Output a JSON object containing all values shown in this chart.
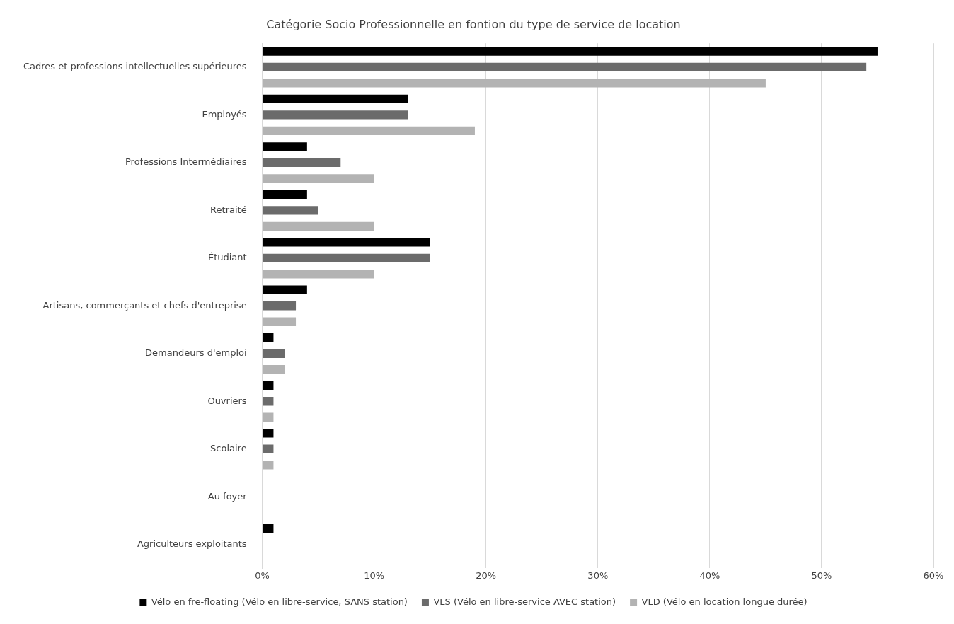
{
  "chart_data": {
    "type": "bar",
    "orientation": "horizontal",
    "title": "Catégorie Socio Professionnelle en fontion du type de service de location",
    "categories": [
      "Cadres et professions intellectuelles supérieures",
      "Employés",
      "Professions Intermédiaires",
      "Retraité",
      "Étudiant",
      "Artisans, commerçants et chefs d'entreprise",
      "Demandeurs d'emploi",
      "Ouvriers",
      "Scolaire",
      "Au foyer",
      "Agriculteurs exploitants"
    ],
    "series": [
      {
        "name": "Vélo en fre-floating (Vélo en libre-service, SANS station)",
        "color": "#000000",
        "values": [
          55,
          13,
          4,
          4,
          15,
          4,
          1,
          1,
          1,
          0,
          1
        ]
      },
      {
        "name": "VLS (Vélo en libre-service AVEC station)",
        "color": "#6b6b6b",
        "values": [
          54,
          13,
          7,
          5,
          15,
          3,
          2,
          1,
          1,
          0,
          0
        ]
      },
      {
        "name": "VLD (Vélo en location longue durée)",
        "color": "#b3b3b3",
        "values": [
          45,
          19,
          10,
          10,
          10,
          3,
          2,
          1,
          1,
          0,
          0
        ]
      }
    ],
    "xlim": [
      0,
      60
    ],
    "xticks": [
      {
        "value": 0,
        "label": "0%"
      },
      {
        "value": 10,
        "label": "10%"
      },
      {
        "value": 20,
        "label": "20%"
      },
      {
        "value": 30,
        "label": "30%"
      },
      {
        "value": 40,
        "label": "40%"
      },
      {
        "value": 50,
        "label": "50%"
      },
      {
        "value": 60,
        "label": "60%"
      }
    ],
    "grid": "x",
    "legend": "bottom"
  }
}
